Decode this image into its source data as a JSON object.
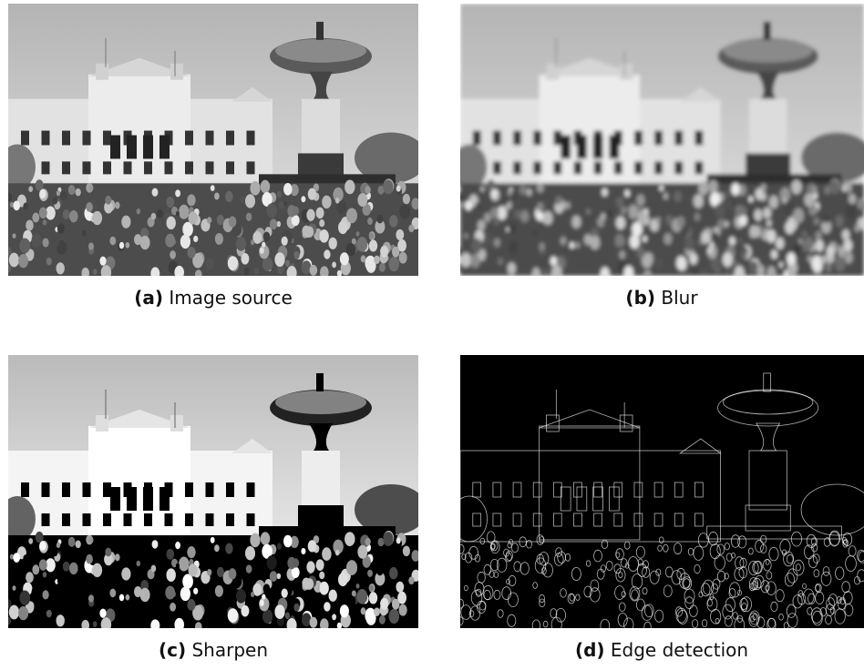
{
  "figures": [
    {
      "label": "(a)",
      "caption": "Image source"
    },
    {
      "label": "(b)",
      "caption": "Blur"
    },
    {
      "label": "(c)",
      "caption": "Sharpen"
    },
    {
      "label": "(d)",
      "caption": "Edge detection"
    }
  ]
}
